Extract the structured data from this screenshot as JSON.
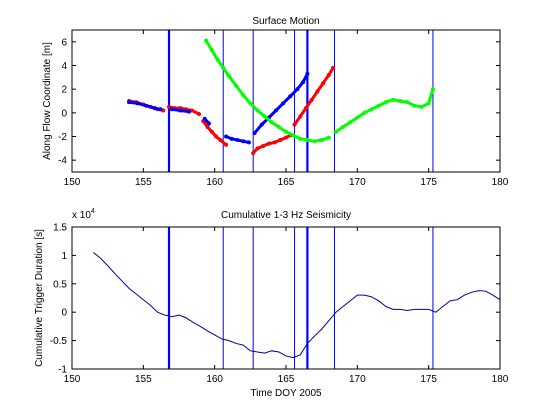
{
  "chart_data": [
    {
      "type": "scatter",
      "title": "Surface Motion",
      "xlabel": "",
      "ylabel": "Along Flow Coordinate [m]",
      "xlim": [
        150,
        180
      ],
      "ylim": [
        -5,
        7
      ],
      "xticks": [
        150,
        155,
        160,
        165,
        170,
        175,
        180
      ],
      "xtick_labels": [
        "150",
        "155",
        "160",
        "165",
        "170",
        "175",
        "180"
      ],
      "yticks": [
        -4,
        -2,
        0,
        2,
        4,
        6
      ],
      "ytick_labels": [
        "-4",
        "-2",
        "0",
        "2",
        "4",
        "6"
      ],
      "grid": false,
      "colors": {
        "red": "#ff0000",
        "blue": "#0000ff",
        "green": "#00ff00",
        "event_lines": "#0000ff"
      },
      "event_lines": [
        {
          "x": 156.8,
          "thick": true
        },
        {
          "x": 160.6,
          "thick": false
        },
        {
          "x": 162.7,
          "thick": false
        },
        {
          "x": 165.6,
          "thick": false
        },
        {
          "x": 166.5,
          "thick": true
        },
        {
          "x": 168.4,
          "thick": false
        },
        {
          "x": 175.3,
          "thick": false
        }
      ],
      "series": [
        {
          "color": "red",
          "x": [
            154.0,
            154.5,
            155.0,
            155.5,
            156.0,
            156.4
          ],
          "y": [
            1.0,
            0.9,
            0.7,
            0.5,
            0.3,
            0.2
          ]
        },
        {
          "color": "red",
          "x": [
            156.8,
            157.2,
            157.6,
            158.0,
            158.4,
            158.9
          ],
          "y": [
            0.5,
            0.4,
            0.4,
            0.3,
            0.2,
            -0.1
          ]
        },
        {
          "color": "red",
          "x": [
            159.2,
            159.5,
            159.8,
            160.1,
            160.4,
            160.8
          ],
          "y": [
            -0.7,
            -1.2,
            -1.6,
            -2.0,
            -2.3,
            -2.7
          ]
        },
        {
          "color": "red",
          "x": [
            162.7,
            163.0,
            163.4,
            163.8,
            164.2,
            164.6,
            165.0,
            165.3
          ],
          "y": [
            -3.4,
            -3.0,
            -2.8,
            -2.6,
            -2.5,
            -2.3,
            -2.1,
            -1.9
          ]
        },
        {
          "color": "red",
          "x": [
            165.6,
            166.0,
            166.4,
            166.8,
            167.2,
            167.6,
            168.0,
            168.3
          ],
          "y": [
            -1.0,
            -0.3,
            0.4,
            1.1,
            1.8,
            2.5,
            3.2,
            3.8
          ]
        },
        {
          "color": "blue",
          "x": [
            154.0,
            154.6,
            155.2,
            155.8,
            156.2
          ],
          "y": [
            0.9,
            0.8,
            0.6,
            0.4,
            0.3
          ]
        },
        {
          "color": "blue",
          "x": [
            157.0,
            157.6,
            158.2
          ],
          "y": [
            0.3,
            0.2,
            0.1
          ]
        },
        {
          "color": "blue",
          "x": [
            159.3,
            159.6
          ],
          "y": [
            -0.5,
            -0.9
          ]
        },
        {
          "color": "blue",
          "x": [
            160.8,
            161.2,
            161.6,
            162.0,
            162.4
          ],
          "y": [
            -2.0,
            -2.2,
            -2.3,
            -2.4,
            -2.5
          ]
        },
        {
          "color": "blue",
          "x": [
            162.8,
            163.3,
            163.8,
            164.3,
            164.8,
            165.3,
            165.8,
            166.2,
            166.5
          ],
          "y": [
            -1.7,
            -1.0,
            -0.4,
            0.2,
            0.8,
            1.4,
            2.0,
            2.6,
            3.3
          ]
        },
        {
          "color": "green",
          "x": [
            159.4,
            159.8,
            160.2,
            160.6,
            161.0,
            161.5,
            162.0,
            162.5,
            163.0,
            163.5,
            164.0,
            164.5,
            165.0,
            165.5,
            166.0,
            166.5,
            167.0,
            167.5,
            168.0
          ],
          "y": [
            6.1,
            5.3,
            4.5,
            3.8,
            3.1,
            2.3,
            1.5,
            0.8,
            0.2,
            -0.3,
            -0.8,
            -1.2,
            -1.6,
            -1.9,
            -2.2,
            -2.3,
            -2.4,
            -2.3,
            -2.1
          ]
        },
        {
          "color": "green",
          "x": [
            168.5,
            169.0,
            169.5,
            170.0,
            170.5,
            171.0,
            171.5,
            172.0,
            172.5,
            173.0,
            173.5,
            174.0,
            174.5,
            175.0,
            175.3
          ],
          "y": [
            -1.6,
            -1.2,
            -0.8,
            -0.4,
            0.0,
            0.3,
            0.6,
            0.9,
            1.1,
            1.0,
            0.9,
            0.6,
            0.5,
            0.8,
            2.0
          ]
        }
      ]
    },
    {
      "type": "line",
      "title": "Cumulative 1-3 Hz Seismicity",
      "xlabel": "Time DOY 2005",
      "ylabel": "Cumulative Trigger Duration [s]",
      "y_exponent_label": "x 10",
      "y_exponent_value": "4",
      "xlim": [
        150,
        180
      ],
      "ylim": [
        -1,
        1.5
      ],
      "xticks": [
        150,
        155,
        160,
        165,
        170,
        175,
        180
      ],
      "xtick_labels": [
        "150",
        "155",
        "160",
        "165",
        "170",
        "175",
        "180"
      ],
      "yticks": [
        -1,
        -0.5,
        0,
        0.5,
        1,
        1.5
      ],
      "ytick_labels": [
        "-1",
        "-0.5",
        "0",
        "0.5",
        "1",
        "1.5"
      ],
      "grid": false,
      "colors": {
        "line": "#0000aa",
        "event_lines": "#0000ff"
      },
      "event_lines": [
        {
          "x": 156.8,
          "thick": true
        },
        {
          "x": 160.6,
          "thick": false
        },
        {
          "x": 162.7,
          "thick": false
        },
        {
          "x": 165.6,
          "thick": false
        },
        {
          "x": 166.5,
          "thick": true
        },
        {
          "x": 168.4,
          "thick": false
        },
        {
          "x": 175.3,
          "thick": false
        }
      ],
      "series": [
        {
          "x": [
            151.5,
            152.0,
            152.5,
            153.0,
            153.5,
            154.0,
            154.5,
            155.0,
            155.5,
            156.0,
            156.5,
            157.0,
            157.5,
            158.0,
            158.5,
            159.0,
            159.5,
            160.0,
            160.5,
            161.0,
            161.5,
            162.0,
            162.5,
            163.0,
            163.5,
            164.0,
            164.5,
            165.0,
            165.5,
            166.0,
            166.5,
            167.0,
            167.5,
            168.0,
            168.5,
            169.0,
            169.5,
            170.0,
            170.5,
            171.0,
            171.5,
            172.0,
            172.5,
            173.0,
            173.5,
            174.0,
            174.5,
            175.0,
            175.5,
            176.0,
            176.5,
            177.0,
            177.5,
            178.0,
            178.5,
            179.0,
            179.5,
            180.0
          ],
          "y": [
            1.05,
            0.95,
            0.82,
            0.68,
            0.55,
            0.42,
            0.32,
            0.22,
            0.12,
            0.0,
            -0.05,
            -0.08,
            -0.05,
            -0.1,
            -0.18,
            -0.25,
            -0.33,
            -0.4,
            -0.47,
            -0.5,
            -0.55,
            -0.58,
            -0.68,
            -0.7,
            -0.72,
            -0.68,
            -0.7,
            -0.77,
            -0.8,
            -0.75,
            -0.55,
            -0.42,
            -0.3,
            -0.15,
            0.0,
            0.1,
            0.2,
            0.3,
            0.3,
            0.27,
            0.2,
            0.1,
            0.05,
            0.05,
            0.03,
            0.05,
            0.05,
            0.05,
            0.0,
            0.1,
            0.2,
            0.22,
            0.3,
            0.35,
            0.38,
            0.37,
            0.3,
            0.22
          ]
        }
      ]
    }
  ]
}
